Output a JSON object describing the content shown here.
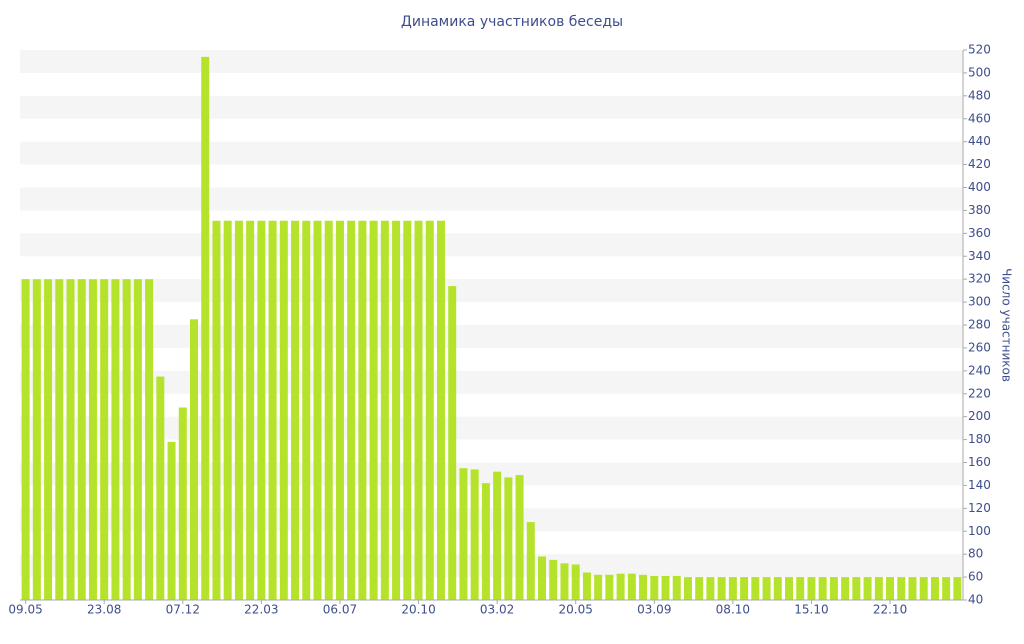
{
  "chart_data": {
    "type": "bar",
    "title": "Динамика участников беседы",
    "y_axis_label": "Число участников",
    "categories": [
      "09.05",
      null,
      null,
      null,
      null,
      null,
      null,
      "23.08",
      null,
      null,
      null,
      null,
      null,
      null,
      "07.12",
      null,
      null,
      null,
      null,
      null,
      null,
      "22.03",
      null,
      null,
      null,
      null,
      null,
      null,
      "06.07",
      null,
      null,
      null,
      null,
      null,
      null,
      "20.10",
      null,
      null,
      null,
      null,
      null,
      null,
      "03.02",
      null,
      null,
      null,
      null,
      null,
      null,
      "20.05",
      null,
      null,
      null,
      null,
      null,
      null,
      "03.09",
      null,
      null,
      null,
      null,
      null,
      null,
      "08.10",
      null,
      null,
      null,
      null,
      null,
      null,
      "15.10",
      null,
      null,
      null,
      null,
      null,
      null,
      "22.10",
      null,
      null,
      null,
      null,
      null,
      null
    ],
    "values": [
      320,
      320,
      320,
      320,
      320,
      320,
      320,
      320,
      320,
      320,
      320,
      320,
      235,
      178,
      208,
      285,
      514,
      371,
      371,
      371,
      371,
      371,
      371,
      371,
      371,
      371,
      371,
      371,
      371,
      371,
      371,
      371,
      371,
      371,
      371,
      371,
      371,
      371,
      314,
      155,
      154,
      142,
      152,
      147,
      149,
      108,
      78,
      75,
      72,
      71,
      64,
      62,
      62,
      63,
      63,
      62,
      61,
      61,
      61,
      60,
      60,
      60,
      60,
      60,
      60,
      60,
      60,
      60,
      60,
      60,
      60,
      60,
      60,
      60,
      60,
      60,
      60,
      60,
      60,
      60,
      60,
      60,
      60,
      60
    ],
    "color": "#b5e32b",
    "ylim": [
      40,
      520
    ],
    "yticks": [
      40,
      60,
      80,
      100,
      120,
      140,
      160,
      180,
      200,
      220,
      240,
      260,
      280,
      300,
      320,
      340,
      360,
      380,
      400,
      420,
      440,
      460,
      480,
      500,
      520
    ],
    "grid": true
  }
}
